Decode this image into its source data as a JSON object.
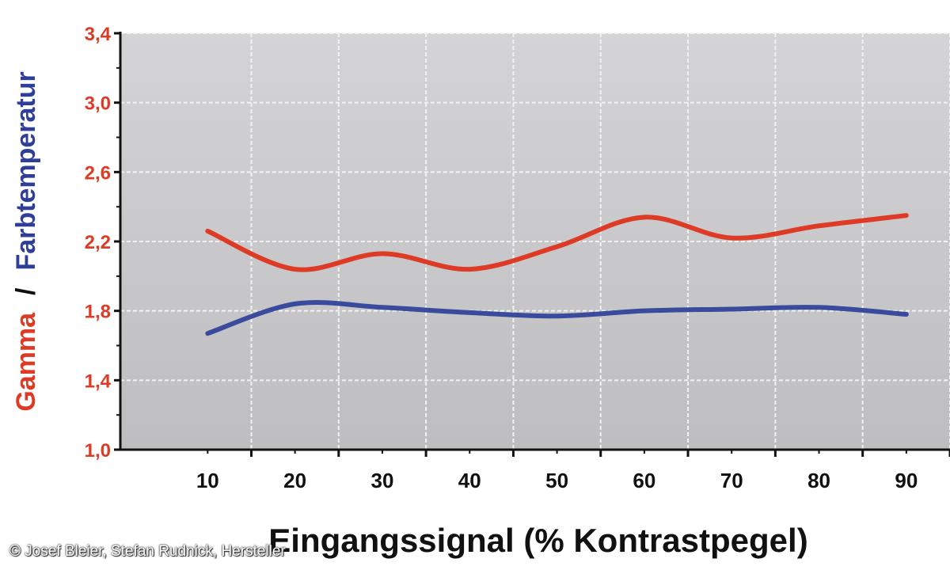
{
  "chart_data": {
    "type": "line",
    "xlabel": "Eingangssignal (% Kontrastpegel)",
    "ylabel_parts": [
      "Gamma",
      "/",
      "Farbtemperatur"
    ],
    "x": [
      10,
      20,
      30,
      40,
      50,
      60,
      70,
      80,
      90
    ],
    "x_tick_labels": [
      "10",
      "20",
      "30",
      "40",
      "50",
      "60",
      "70",
      "80",
      "90"
    ],
    "y_tick_labels": [
      "1,0",
      "1,4",
      "1,8",
      "2,2",
      "2,6",
      "3,0",
      "3,4"
    ],
    "ylim": [
      1.0,
      3.4
    ],
    "xlim": [
      0,
      95
    ],
    "grid": true,
    "series": [
      {
        "color": "#de3b26",
        "values": [
          2.26,
          2.04,
          2.13,
          2.04,
          2.17,
          2.34,
          2.22,
          2.29,
          2.35
        ]
      },
      {
        "color": "#3a4a9c",
        "values": [
          1.67,
          1.84,
          1.82,
          1.79,
          1.77,
          1.8,
          1.81,
          1.82,
          1.78
        ]
      }
    ],
    "colors": {
      "gamma_label": "#de3b26",
      "farbtemperatur_label": "#2f3f98",
      "y_ticks": "#de3b26",
      "plot_bg_top": "#d4d4d6",
      "plot_bg_bottom": "#bebec0",
      "grid": "#f2f2f2"
    }
  },
  "credit": "© Josef Bleier, Stefan Rudnick, Hersteller"
}
